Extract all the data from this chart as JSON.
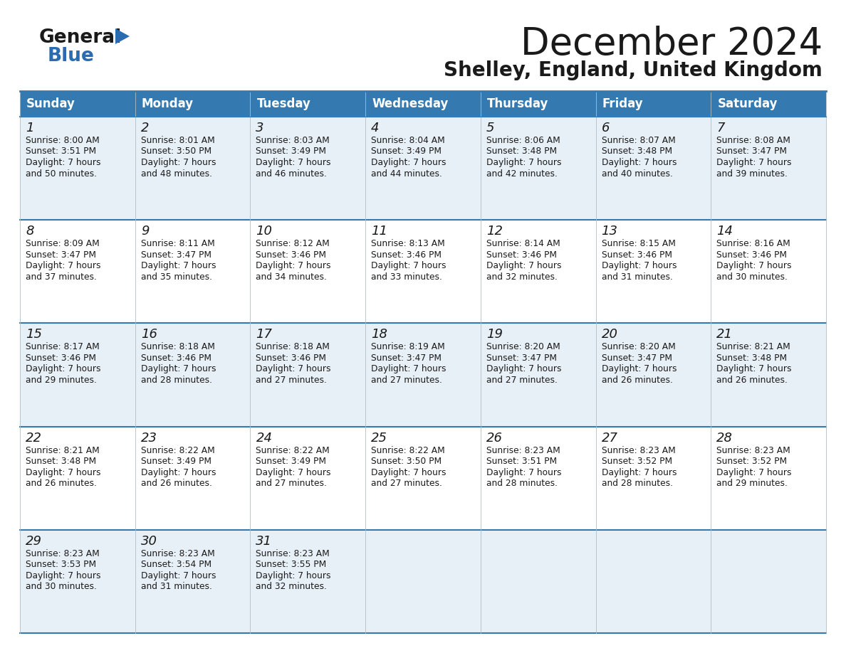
{
  "title": "December 2024",
  "subtitle": "Shelley, England, United Kingdom",
  "header_color": "#3579b1",
  "header_text_color": "#ffffff",
  "cell_bg_light": "#e8f0f7",
  "cell_bg_white": "#ffffff",
  "border_color": "#3579b1",
  "text_color": "#1a1a1a",
  "day_headers": [
    "Sunday",
    "Monday",
    "Tuesday",
    "Wednesday",
    "Thursday",
    "Friday",
    "Saturday"
  ],
  "calendar_data": [
    [
      {
        "day": "1",
        "sunrise": "8:00 AM",
        "sunset": "3:51 PM",
        "daylight": "7 hours and 50 minutes"
      },
      {
        "day": "2",
        "sunrise": "8:01 AM",
        "sunset": "3:50 PM",
        "daylight": "7 hours and 48 minutes"
      },
      {
        "day": "3",
        "sunrise": "8:03 AM",
        "sunset": "3:49 PM",
        "daylight": "7 hours and 46 minutes"
      },
      {
        "day": "4",
        "sunrise": "8:04 AM",
        "sunset": "3:49 PM",
        "daylight": "7 hours and 44 minutes"
      },
      {
        "day": "5",
        "sunrise": "8:06 AM",
        "sunset": "3:48 PM",
        "daylight": "7 hours and 42 minutes"
      },
      {
        "day": "6",
        "sunrise": "8:07 AM",
        "sunset": "3:48 PM",
        "daylight": "7 hours and 40 minutes"
      },
      {
        "day": "7",
        "sunrise": "8:08 AM",
        "sunset": "3:47 PM",
        "daylight": "7 hours and 39 minutes"
      }
    ],
    [
      {
        "day": "8",
        "sunrise": "8:09 AM",
        "sunset": "3:47 PM",
        "daylight": "7 hours and 37 minutes"
      },
      {
        "day": "9",
        "sunrise": "8:11 AM",
        "sunset": "3:47 PM",
        "daylight": "7 hours and 35 minutes"
      },
      {
        "day": "10",
        "sunrise": "8:12 AM",
        "sunset": "3:46 PM",
        "daylight": "7 hours and 34 minutes"
      },
      {
        "day": "11",
        "sunrise": "8:13 AM",
        "sunset": "3:46 PM",
        "daylight": "7 hours and 33 minutes"
      },
      {
        "day": "12",
        "sunrise": "8:14 AM",
        "sunset": "3:46 PM",
        "daylight": "7 hours and 32 minutes"
      },
      {
        "day": "13",
        "sunrise": "8:15 AM",
        "sunset": "3:46 PM",
        "daylight": "7 hours and 31 minutes"
      },
      {
        "day": "14",
        "sunrise": "8:16 AM",
        "sunset": "3:46 PM",
        "daylight": "7 hours and 30 minutes"
      }
    ],
    [
      {
        "day": "15",
        "sunrise": "8:17 AM",
        "sunset": "3:46 PM",
        "daylight": "7 hours and 29 minutes"
      },
      {
        "day": "16",
        "sunrise": "8:18 AM",
        "sunset": "3:46 PM",
        "daylight": "7 hours and 28 minutes"
      },
      {
        "day": "17",
        "sunrise": "8:18 AM",
        "sunset": "3:46 PM",
        "daylight": "7 hours and 27 minutes"
      },
      {
        "day": "18",
        "sunrise": "8:19 AM",
        "sunset": "3:47 PM",
        "daylight": "7 hours and 27 minutes"
      },
      {
        "day": "19",
        "sunrise": "8:20 AM",
        "sunset": "3:47 PM",
        "daylight": "7 hours and 27 minutes"
      },
      {
        "day": "20",
        "sunrise": "8:20 AM",
        "sunset": "3:47 PM",
        "daylight": "7 hours and 26 minutes"
      },
      {
        "day": "21",
        "sunrise": "8:21 AM",
        "sunset": "3:48 PM",
        "daylight": "7 hours and 26 minutes"
      }
    ],
    [
      {
        "day": "22",
        "sunrise": "8:21 AM",
        "sunset": "3:48 PM",
        "daylight": "7 hours and 26 minutes"
      },
      {
        "day": "23",
        "sunrise": "8:22 AM",
        "sunset": "3:49 PM",
        "daylight": "7 hours and 26 minutes"
      },
      {
        "day": "24",
        "sunrise": "8:22 AM",
        "sunset": "3:49 PM",
        "daylight": "7 hours and 27 minutes"
      },
      {
        "day": "25",
        "sunrise": "8:22 AM",
        "sunset": "3:50 PM",
        "daylight": "7 hours and 27 minutes"
      },
      {
        "day": "26",
        "sunrise": "8:23 AM",
        "sunset": "3:51 PM",
        "daylight": "7 hours and 28 minutes"
      },
      {
        "day": "27",
        "sunrise": "8:23 AM",
        "sunset": "3:52 PM",
        "daylight": "7 hours and 28 minutes"
      },
      {
        "day": "28",
        "sunrise": "8:23 AM",
        "sunset": "3:52 PM",
        "daylight": "7 hours and 29 minutes"
      }
    ],
    [
      {
        "day": "29",
        "sunrise": "8:23 AM",
        "sunset": "3:53 PM",
        "daylight": "7 hours and 30 minutes"
      },
      {
        "day": "30",
        "sunrise": "8:23 AM",
        "sunset": "3:54 PM",
        "daylight": "7 hours and 31 minutes"
      },
      {
        "day": "31",
        "sunrise": "8:23 AM",
        "sunset": "3:55 PM",
        "daylight": "7 hours and 32 minutes"
      },
      null,
      null,
      null,
      null
    ]
  ],
  "logo_color_general": "#1a1a1a",
  "logo_color_blue": "#2b6cb0",
  "title_fontsize": 38,
  "subtitle_fontsize": 20,
  "header_fontsize": 12,
  "day_num_fontsize": 13,
  "cell_text_fontsize": 8.8
}
